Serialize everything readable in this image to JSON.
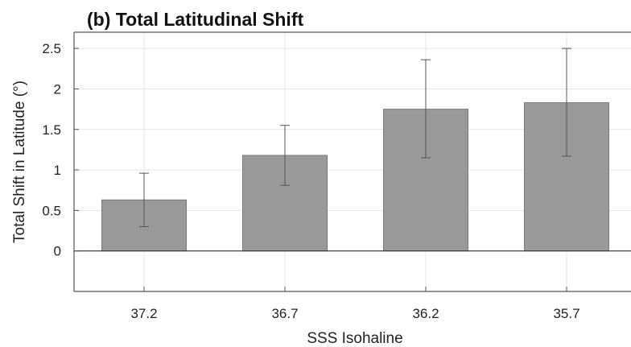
{
  "chart_data": {
    "type": "bar",
    "title": "(b) Total Latitudinal Shift",
    "xlabel": "SSS Isohaline",
    "ylabel": "Total Shift in Latitude (°)",
    "categories": [
      "37.2",
      "36.7",
      "36.2",
      "35.7"
    ],
    "series": [
      {
        "values": [
          0.63,
          1.18,
          1.75,
          1.83
        ],
        "error_low": [
          0.3,
          0.81,
          1.15,
          1.17
        ],
        "error_high": [
          0.96,
          1.55,
          2.36,
          2.5
        ]
      }
    ],
    "ylim": [
      -0.5,
      2.7
    ],
    "yticks": [
      "0",
      "0.5",
      "1",
      "1.5",
      "2",
      "2.5"
    ],
    "grid": true,
    "legend": "none",
    "colors": {
      "bar": "#999999",
      "bar_edge": "#7a7a7a",
      "error": "#555555",
      "grid": "#e6e6e6",
      "axis": "#555555",
      "zero_line": "#333333"
    }
  }
}
